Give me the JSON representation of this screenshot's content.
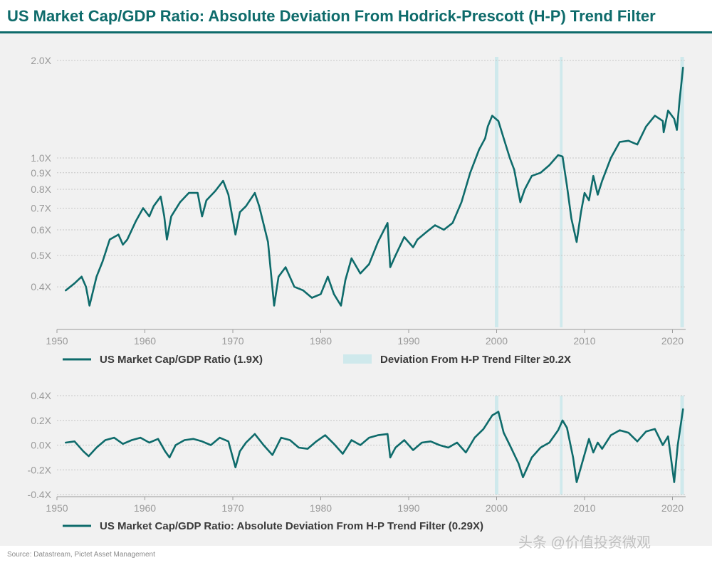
{
  "title": "US Market Cap/GDP Ratio: Absolute Deviation From Hodrick-Prescott (H-P) Trend Filter",
  "source": "Source: Datastream, Pictet Asset Management",
  "watermark": "头条 @价值投资微观",
  "colors": {
    "line": "#0e6b6b",
    "band": "#cfe9ec",
    "grid": "#c6c6c6",
    "panel_bg": "#f1f1f1"
  },
  "chart_data": [
    {
      "type": "line",
      "y_scale": "log",
      "xlim": [
        1950,
        2021.5
      ],
      "ylim": [
        0.3,
        2.05
      ],
      "x_ticks": [
        1950,
        1960,
        1970,
        1980,
        1990,
        2000,
        2010,
        2020
      ],
      "x_tick_labels": [
        "1950",
        "1960",
        "1970",
        "1980",
        "1990",
        "2000",
        "2010",
        "2020"
      ],
      "y_ticks": [
        0.4,
        0.5,
        0.6,
        0.7,
        0.8,
        0.9,
        1.0,
        2.0
      ],
      "y_tick_labels": [
        "0.4X",
        "0.5X",
        "0.6X",
        "0.7X",
        "0.8X",
        "0.9X",
        "1.0X",
        "2.0X"
      ],
      "grid": true,
      "legend": [
        {
          "label": "US Market Cap/GDP Ratio (1.9X)",
          "kind": "line"
        },
        {
          "label": "Deviation From H-P Trend Filter ≥0.2X",
          "kind": "band"
        }
      ],
      "bands": [
        [
          1999.8,
          2000.2
        ],
        [
          2007.2,
          2007.5
        ],
        [
          2020.9,
          2021.3
        ]
      ],
      "series": [
        {
          "x": [
            1951,
            1952,
            1952.8,
            1953.3,
            1953.7,
            1954.5,
            1955.2,
            1956,
            1957,
            1957.5,
            1958,
            1959,
            1959.8,
            1960.5,
            1961,
            1961.8,
            1962.2,
            1962.5,
            1963,
            1964,
            1965,
            1966,
            1966.5,
            1967,
            1968,
            1968.9,
            1969.5,
            1970.3,
            1970.8,
            1971.5,
            1972.5,
            1973,
            1974,
            1974.7,
            1975.2,
            1976,
            1977,
            1978,
            1979,
            1980,
            1980.8,
            1981.5,
            1982.3,
            1982.8,
            1983.5,
            1984.5,
            1985.5,
            1986.5,
            1987.6,
            1987.9,
            1988.5,
            1989.5,
            1990.5,
            1991,
            1992,
            1993,
            1994,
            1995,
            1996,
            1997,
            1998,
            1998.7,
            1999,
            1999.5,
            2000.2,
            2000.8,
            2001.5,
            2002,
            2002.7,
            2003.2,
            2004,
            2005,
            2006,
            2007,
            2007.5,
            2008,
            2008.5,
            2009.1,
            2009.6,
            2010,
            2010.5,
            2011,
            2011.5,
            2012,
            2013,
            2014,
            2015,
            2016,
            2017,
            2018,
            2018.9,
            2019,
            2019.5,
            2020.2,
            2020.5,
            2020.8,
            2021.2
          ],
          "y": [
            0.39,
            0.41,
            0.43,
            0.4,
            0.35,
            0.43,
            0.48,
            0.56,
            0.58,
            0.54,
            0.56,
            0.64,
            0.7,
            0.66,
            0.71,
            0.76,
            0.66,
            0.56,
            0.66,
            0.73,
            0.78,
            0.78,
            0.66,
            0.74,
            0.79,
            0.85,
            0.77,
            0.58,
            0.68,
            0.71,
            0.78,
            0.71,
            0.55,
            0.35,
            0.43,
            0.46,
            0.4,
            0.39,
            0.37,
            0.38,
            0.43,
            0.38,
            0.35,
            0.42,
            0.49,
            0.44,
            0.47,
            0.55,
            0.63,
            0.46,
            0.5,
            0.57,
            0.53,
            0.56,
            0.59,
            0.62,
            0.6,
            0.63,
            0.73,
            0.9,
            1.06,
            1.15,
            1.25,
            1.35,
            1.3,
            1.15,
            1.0,
            0.92,
            0.73,
            0.8,
            0.88,
            0.9,
            0.95,
            1.02,
            1.01,
            0.82,
            0.65,
            0.55,
            0.68,
            0.78,
            0.74,
            0.88,
            0.77,
            0.85,
            1.0,
            1.12,
            1.13,
            1.1,
            1.25,
            1.35,
            1.3,
            1.2,
            1.4,
            1.32,
            1.22,
            1.5,
            1.9
          ]
        }
      ]
    },
    {
      "type": "line",
      "xlim": [
        1950,
        2021.5
      ],
      "ylim": [
        -0.4,
        0.4
      ],
      "x_ticks": [
        1950,
        1960,
        1970,
        1980,
        1990,
        2000,
        2010,
        2020
      ],
      "x_tick_labels": [
        "1950",
        "1960",
        "1970",
        "1980",
        "1990",
        "2000",
        "2010",
        "2020"
      ],
      "y_ticks": [
        0.4,
        0.2,
        0.0,
        -0.2,
        -0.4
      ],
      "y_tick_labels": [
        "0.4X",
        "0.2X",
        "0.0X",
        "-0.2X",
        "-0.4X"
      ],
      "grid": true,
      "legend": [
        {
          "label": "US Market Cap/GDP Ratio: Absolute Deviation From H-P Trend Filter (0.29X)",
          "kind": "line"
        }
      ],
      "bands": [
        [
          1999.8,
          2000.2
        ],
        [
          2007.2,
          2007.5
        ],
        [
          2020.9,
          2021.3
        ]
      ],
      "series": [
        {
          "x": [
            1951,
            1952,
            1953,
            1953.6,
            1954.5,
            1955.5,
            1956.5,
            1957.5,
            1958.5,
            1959.5,
            1960.5,
            1961.5,
            1962.3,
            1962.8,
            1963.5,
            1964.5,
            1965.5,
            1966.5,
            1967.5,
            1968.5,
            1969.5,
            1970.3,
            1970.8,
            1971.5,
            1972.5,
            1973.5,
            1974.5,
            1975.5,
            1976.5,
            1977.5,
            1978.5,
            1979.5,
            1980.5,
            1981.5,
            1982.5,
            1983.5,
            1984.5,
            1985.5,
            1986.5,
            1987.6,
            1987.9,
            1988.5,
            1989.5,
            1990.5,
            1991.5,
            1992.5,
            1993.5,
            1994.5,
            1995.5,
            1996.5,
            1997.5,
            1998.5,
            1999.5,
            2000.2,
            2000.8,
            2001.5,
            2002.5,
            2003,
            2004,
            2005,
            2006,
            2007,
            2007.5,
            2008,
            2008.7,
            2009.1,
            2009.7,
            2010.5,
            2011,
            2011.5,
            2012,
            2013,
            2014,
            2015,
            2016,
            2017,
            2018,
            2018.9,
            2019.5,
            2020.2,
            2020.6,
            2021.2
          ],
          "y": [
            0.02,
            0.03,
            -0.05,
            -0.09,
            -0.02,
            0.04,
            0.06,
            0.01,
            0.04,
            0.06,
            0.02,
            0.05,
            -0.05,
            -0.1,
            0.0,
            0.04,
            0.05,
            0.03,
            0.0,
            0.06,
            0.03,
            -0.18,
            -0.05,
            0.02,
            0.09,
            0.0,
            -0.08,
            0.06,
            0.04,
            -0.02,
            -0.03,
            0.03,
            0.08,
            0.01,
            -0.07,
            0.04,
            0.0,
            0.06,
            0.08,
            0.09,
            -0.1,
            -0.02,
            0.04,
            -0.04,
            0.02,
            0.03,
            0.0,
            -0.02,
            0.02,
            -0.06,
            0.06,
            0.13,
            0.24,
            0.27,
            0.1,
            0.0,
            -0.15,
            -0.26,
            -0.1,
            -0.02,
            0.02,
            0.12,
            0.2,
            0.14,
            -0.1,
            -0.3,
            -0.15,
            0.05,
            -0.06,
            0.02,
            -0.03,
            0.08,
            0.12,
            0.1,
            0.03,
            0.11,
            0.13,
            0.0,
            0.07,
            -0.3,
            0.0,
            0.29
          ]
        }
      ]
    }
  ]
}
